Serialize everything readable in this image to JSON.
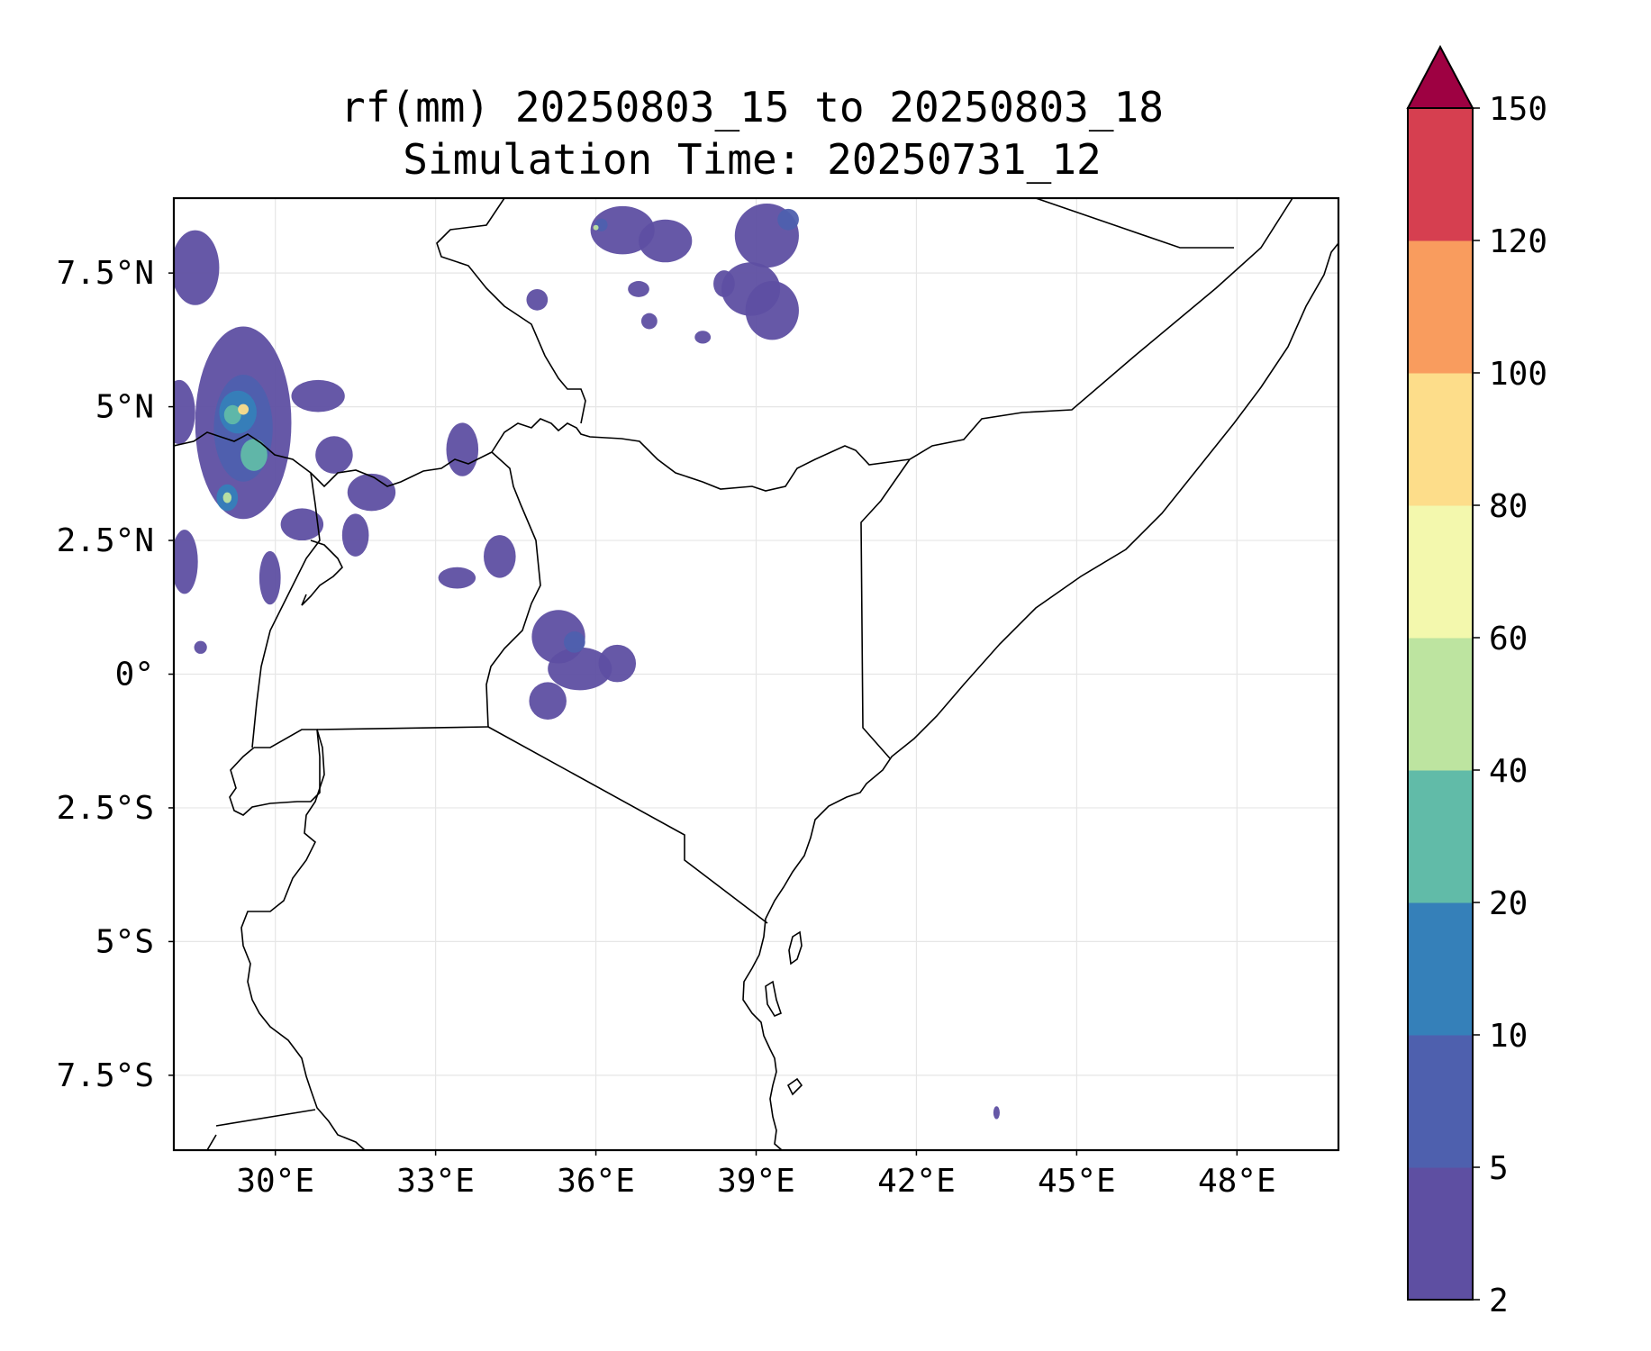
{
  "title": "rf(mm) 20250803_15 to 20250803_18",
  "subtitle": "Simulation Time: 20250731_12",
  "map": {
    "region": "East Africa",
    "lon_range": [
      28.1,
      49.9
    ],
    "lat_range": [
      -8.9,
      8.9
    ],
    "x_ticks": [
      {
        "value": 30,
        "label": "30°E"
      },
      {
        "value": 33,
        "label": "33°E"
      },
      {
        "value": 36,
        "label": "36°E"
      },
      {
        "value": 39,
        "label": "39°E"
      },
      {
        "value": 42,
        "label": "42°E"
      },
      {
        "value": 45,
        "label": "45°E"
      },
      {
        "value": 48,
        "label": "48°E"
      }
    ],
    "y_ticks": [
      {
        "value": 7.5,
        "label": "7.5°N"
      },
      {
        "value": 5,
        "label": "5°N"
      },
      {
        "value": 2.5,
        "label": "2.5°N"
      },
      {
        "value": 0,
        "label": "0°"
      },
      {
        "value": -2.5,
        "label": "2.5°S"
      },
      {
        "value": -5,
        "label": "5°S"
      },
      {
        "value": -7.5,
        "label": "7.5°S"
      }
    ],
    "grid": true
  },
  "colorbar": {
    "levels": [
      2,
      5,
      10,
      20,
      40,
      60,
      80,
      100,
      120,
      150
    ],
    "tick_labels": [
      "2",
      "5",
      "10",
      "20",
      "40",
      "60",
      "80",
      "100",
      "120",
      "150"
    ],
    "colors": [
      "#5e4fa2",
      "#4e60ae",
      "#3580b9",
      "#61bba8",
      "#bde4a0",
      "#f3f8ad",
      "#fddd8a",
      "#f99c5e",
      "#d63f50"
    ],
    "extend_color": "#9e0142",
    "extend": "max"
  },
  "rain_cells": [
    {
      "lon": 29.4,
      "lat": 4.7,
      "rx": 0.9,
      "ry": 1.8,
      "level": 0
    },
    {
      "lon": 29.4,
      "lat": 4.6,
      "rx": 0.55,
      "ry": 1.0,
      "level": 1
    },
    {
      "lon": 29.3,
      "lat": 4.9,
      "rx": 0.35,
      "ry": 0.4,
      "level": 2
    },
    {
      "lon": 29.2,
      "lat": 4.85,
      "rx": 0.16,
      "ry": 0.18,
      "level": 3
    },
    {
      "lon": 29.4,
      "lat": 4.95,
      "rx": 0.1,
      "ry": 0.1,
      "level": 6
    },
    {
      "lon": 29.1,
      "lat": 3.3,
      "rx": 0.2,
      "ry": 0.25,
      "level": 2
    },
    {
      "lon": 29.1,
      "lat": 3.3,
      "rx": 0.08,
      "ry": 0.1,
      "level": 4
    },
    {
      "lon": 29.6,
      "lat": 4.1,
      "rx": 0.25,
      "ry": 0.3,
      "level": 3
    },
    {
      "lon": 28.5,
      "lat": 7.6,
      "rx": 0.45,
      "ry": 0.7,
      "level": 0
    },
    {
      "lon": 28.2,
      "lat": 4.9,
      "rx": 0.3,
      "ry": 0.6,
      "level": 0
    },
    {
      "lon": 28.3,
      "lat": 2.1,
      "rx": 0.25,
      "ry": 0.6,
      "level": 0
    },
    {
      "lon": 30.8,
      "lat": 5.2,
      "rx": 0.5,
      "ry": 0.3,
      "level": 0
    },
    {
      "lon": 31.1,
      "lat": 4.1,
      "rx": 0.35,
      "ry": 0.35,
      "level": 0
    },
    {
      "lon": 31.8,
      "lat": 3.4,
      "rx": 0.45,
      "ry": 0.35,
      "level": 0
    },
    {
      "lon": 31.5,
      "lat": 2.6,
      "rx": 0.25,
      "ry": 0.4,
      "level": 0
    },
    {
      "lon": 30.5,
      "lat": 2.8,
      "rx": 0.4,
      "ry": 0.3,
      "level": 0
    },
    {
      "lon": 29.9,
      "lat": 1.8,
      "rx": 0.2,
      "ry": 0.5,
      "level": 0
    },
    {
      "lon": 33.5,
      "lat": 4.2,
      "rx": 0.3,
      "ry": 0.5,
      "level": 0
    },
    {
      "lon": 34.2,
      "lat": 2.2,
      "rx": 0.3,
      "ry": 0.4,
      "level": 0
    },
    {
      "lon": 33.4,
      "lat": 1.8,
      "rx": 0.35,
      "ry": 0.2,
      "level": 0
    },
    {
      "lon": 35.3,
      "lat": 0.7,
      "rx": 0.5,
      "ry": 0.5,
      "level": 0
    },
    {
      "lon": 35.7,
      "lat": 0.1,
      "rx": 0.6,
      "ry": 0.4,
      "level": 0
    },
    {
      "lon": 35.1,
      "lat": -0.5,
      "rx": 0.35,
      "ry": 0.35,
      "level": 0
    },
    {
      "lon": 36.4,
      "lat": 0.2,
      "rx": 0.35,
      "ry": 0.35,
      "level": 0
    },
    {
      "lon": 35.6,
      "lat": 0.6,
      "rx": 0.2,
      "ry": 0.2,
      "level": 1
    },
    {
      "lon": 36.5,
      "lat": 8.3,
      "rx": 0.6,
      "ry": 0.45,
      "level": 0
    },
    {
      "lon": 37.3,
      "lat": 8.1,
      "rx": 0.5,
      "ry": 0.4,
      "level": 0
    },
    {
      "lon": 39.2,
      "lat": 8.2,
      "rx": 0.6,
      "ry": 0.6,
      "level": 0
    },
    {
      "lon": 38.9,
      "lat": 7.2,
      "rx": 0.55,
      "ry": 0.5,
      "level": 0
    },
    {
      "lon": 39.3,
      "lat": 6.8,
      "rx": 0.5,
      "ry": 0.55,
      "level": 0
    },
    {
      "lon": 38.4,
      "lat": 7.3,
      "rx": 0.2,
      "ry": 0.25,
      "level": 0
    },
    {
      "lon": 36.1,
      "lat": 8.4,
      "rx": 0.12,
      "ry": 0.12,
      "level": 1
    },
    {
      "lon": 36.0,
      "lat": 8.35,
      "rx": 0.05,
      "ry": 0.05,
      "level": 4
    },
    {
      "lon": 39.6,
      "lat": 8.5,
      "rx": 0.2,
      "ry": 0.2,
      "level": 1
    },
    {
      "lon": 37.0,
      "lat": 6.6,
      "rx": 0.15,
      "ry": 0.15,
      "level": 0
    },
    {
      "lon": 36.8,
      "lat": 7.2,
      "rx": 0.2,
      "ry": 0.15,
      "level": 0
    },
    {
      "lon": 34.9,
      "lat": 7.0,
      "rx": 0.2,
      "ry": 0.2,
      "level": 0
    },
    {
      "lon": 38.0,
      "lat": 6.3,
      "rx": 0.15,
      "ry": 0.12,
      "level": 0
    },
    {
      "lon": 28.6,
      "lat": 0.5,
      "rx": 0.12,
      "ry": 0.12,
      "level": 0
    },
    {
      "lon": 43.5,
      "lat": -8.2,
      "rx": 0.06,
      "ry": 0.12,
      "level": 0
    }
  ]
}
